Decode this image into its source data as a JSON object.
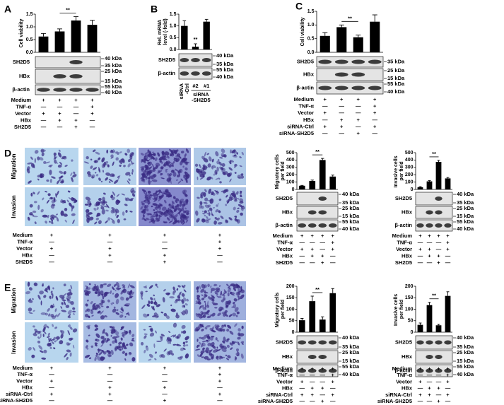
{
  "panel_letters": [
    "A",
    "B",
    "C",
    "D",
    "E"
  ],
  "chart_data": [
    {
      "type": "bar",
      "ylabel": "Cell viability",
      "values": [
        0.62,
        0.82,
        1.25,
        1.08
      ],
      "errors": [
        0.12,
        0.1,
        0.15,
        0.18
      ],
      "color": "#000000",
      "ylim": [
        0,
        1.5
      ],
      "yticks": [
        {
          "value": 0,
          "label": "0.0"
        },
        {
          "value": 0.5,
          "label": "0.5"
        },
        {
          "value": 1,
          "label": "1.0"
        },
        {
          "value": 1.5,
          "label": "1.5"
        }
      ],
      "significance": {
        "label": "**",
        "between": [
          1,
          2
        ]
      }
    },
    {
      "type": "bar",
      "ylabel": "Rel. mRNA level (-fold)",
      "categories": [
        "siRNA-Ctrl",
        "#2",
        "#1"
      ],
      "group_label": "siRNA-SH2D5",
      "values": [
        1.0,
        0.12,
        1.18
      ],
      "errors": [
        0.22,
        0.12,
        0.1
      ],
      "color": "#000000",
      "ylim": [
        0,
        1.5
      ],
      "yticks": [
        {
          "value": 0,
          "label": "0.0"
        },
        {
          "value": 0.5,
          "label": "0.5"
        },
        {
          "value": 1,
          "label": "1.0"
        },
        {
          "value": 1.5,
          "label": "1.5"
        }
      ],
      "significance": {
        "label": "**",
        "over": 1
      }
    },
    {
      "type": "bar",
      "ylabel": "Cell viability",
      "values": [
        0.6,
        0.92,
        0.55,
        1.12
      ],
      "errors": [
        0.12,
        0.08,
        0.08,
        0.25
      ],
      "color": "#000000",
      "ylim": [
        0,
        1.5
      ],
      "yticks": [
        {
          "value": 0,
          "label": "0.0"
        },
        {
          "value": 0.5,
          "label": "0.5"
        },
        {
          "value": 1,
          "label": "1.0"
        },
        {
          "value": 1.5,
          "label": "1.5"
        }
      ],
      "significance": {
        "label": "**",
        "between": [
          1,
          2
        ]
      }
    },
    {
      "type": "bar",
      "ylabel": "Migratory cells per field",
      "values": [
        50,
        115,
        400,
        175
      ],
      "errors": [
        5,
        12,
        22,
        20
      ],
      "color": "#000000",
      "ylim": [
        0,
        500
      ],
      "yticks": [
        0,
        100,
        200,
        300,
        400,
        500
      ],
      "significance": {
        "label": "**",
        "between": [
          1,
          2
        ]
      }
    },
    {
      "type": "bar",
      "ylabel": "Invasive cells per field",
      "values": [
        30,
        110,
        375,
        150
      ],
      "errors": [
        8,
        10,
        20,
        12
      ],
      "color": "#000000",
      "ylim": [
        0,
        500
      ],
      "yticks": [
        0,
        100,
        200,
        300,
        400,
        500
      ],
      "significance": {
        "label": "**",
        "between": [
          1,
          2
        ]
      }
    },
    {
      "type": "bar",
      "ylabel": "Migratory cells per field",
      "values": [
        52,
        135,
        55,
        170
      ],
      "errors": [
        8,
        22,
        12,
        20
      ],
      "color": "#000000",
      "ylim": [
        0,
        200
      ],
      "yticks": [
        0,
        50,
        100,
        150,
        200
      ],
      "significance": {
        "label": "**",
        "between": [
          1,
          2
        ]
      }
    },
    {
      "type": "bar",
      "ylabel": "Invasive cells per field",
      "values": [
        32,
        118,
        30,
        158
      ],
      "errors": [
        8,
        12,
        4,
        18
      ],
      "color": "#000000",
      "ylim": [
        0,
        200
      ],
      "yticks": [
        0,
        50,
        100,
        150,
        200
      ],
      "significance": {
        "label": "**",
        "between": [
          1,
          2
        ]
      }
    }
  ],
  "blots": [
    {
      "rows": [
        {
          "label": "SH2D5",
          "markers": [
            "40 kDa",
            "35 kDa"
          ]
        },
        {
          "label": "HBx",
          "markers": [
            "25 kDa",
            "15 kDa"
          ]
        },
        {
          "label": "β-actin",
          "markers": [
            "55 kDa",
            "40 kDa"
          ]
        }
      ]
    },
    {
      "rows": [
        {
          "label": "SH2D5",
          "markers": [
            "40 kDa",
            "35 kDa"
          ]
        },
        {
          "label": "β-actin",
          "markers": [
            "55 kDa",
            "40 kDa"
          ]
        }
      ]
    },
    {
      "rows": [
        {
          "label": "SH2D5",
          "markers": [
            "35 kDa"
          ]
        },
        {
          "label": "HBx",
          "markers": [
            "25 kDa",
            "15 kDa"
          ]
        },
        {
          "label": "β-actin",
          "markers": [
            "55 kDa",
            "40 kDa"
          ]
        }
      ]
    },
    {
      "rows": [
        {
          "label": "SH2D5",
          "markers": [
            "40 kDa",
            "35 kDa"
          ]
        },
        {
          "label": "HBx",
          "markers": [
            "25 kDa",
            "15 kDa"
          ]
        },
        {
          "label": "β-actin",
          "markers": [
            "55 kDa",
            "40 kDa"
          ]
        }
      ]
    },
    {
      "rows": [
        {
          "label": "SH2D5",
          "markers": [
            "40 kDa",
            "35 kDa"
          ]
        },
        {
          "label": "HBx",
          "markers": [
            "25 kDa",
            "15 kDa"
          ]
        },
        {
          "label": "β-actin",
          "markers": [
            "55 kDa",
            "40 kDa"
          ]
        }
      ]
    },
    {
      "rows": [
        {
          "label": "SH2D5",
          "markers": [
            "40 kDa",
            "35 kDa"
          ]
        },
        {
          "label": "HBx",
          "markers": [
            "25 kDa",
            "15 kDa"
          ]
        },
        {
          "label": "β-actin",
          "markers": [
            "55 kDa",
            "40 kDa"
          ]
        }
      ]
    },
    {
      "rows": [
        {
          "label": "SH2D5",
          "markers": [
            "40 kDa",
            "35 kDa"
          ]
        },
        {
          "label": "HBx",
          "markers": [
            "25 kDa",
            "15 kDa"
          ]
        },
        {
          "label": "β-actin",
          "markers": [
            "55 kDa",
            "40 kDa"
          ]
        }
      ]
    }
  ],
  "conditions": [
    {
      "rows": [
        {
          "label": "Medium",
          "signs": [
            "+",
            "+",
            "+",
            "+"
          ]
        },
        {
          "label": "TNF-α",
          "signs": [
            "—",
            "—",
            "—",
            "+"
          ]
        },
        {
          "label": "Vector",
          "signs": [
            "+",
            "+",
            "—",
            "+"
          ]
        },
        {
          "label": "HBx",
          "signs": [
            "—",
            "+",
            "+",
            "—"
          ]
        },
        {
          "label": "SH2D5",
          "signs": [
            "—",
            "—",
            "+",
            "—"
          ]
        }
      ]
    },
    {
      "rows": [
        {
          "label": "Medium",
          "signs": [
            "+",
            "+",
            "+",
            "+"
          ]
        },
        {
          "label": "TNF-α",
          "signs": [
            "—",
            "—",
            "—",
            "+"
          ]
        },
        {
          "label": "Vector",
          "signs": [
            "+",
            "—",
            "—",
            "+"
          ]
        },
        {
          "label": "HBx",
          "signs": [
            "—",
            "+",
            "+",
            "—"
          ]
        },
        {
          "label": "siRNA-Ctrl",
          "signs": [
            "+",
            "+",
            "—",
            "+"
          ]
        },
        {
          "label": "siRNA-SH2D5",
          "signs": [
            "—",
            "—",
            "+",
            "—"
          ]
        }
      ]
    },
    {
      "rows": [
        {
          "label": "Medium",
          "signs": [
            "+",
            "+",
            "+",
            "+"
          ]
        },
        {
          "label": "TNF-α",
          "signs": [
            "—",
            "—",
            "—",
            "+"
          ]
        },
        {
          "label": "Vector",
          "signs": [
            "+",
            "+",
            "—",
            "+"
          ]
        },
        {
          "label": "HBx",
          "signs": [
            "—",
            "+",
            "+",
            "—"
          ]
        },
        {
          "label": "SH2D5",
          "signs": [
            "—",
            "—",
            "+",
            "—"
          ]
        }
      ]
    },
    {
      "rows": [
        {
          "label": "Medium",
          "signs": [
            "+",
            "+",
            "+",
            "+"
          ]
        },
        {
          "label": "TNF-α",
          "signs": [
            "—",
            "—",
            "—",
            "+"
          ]
        },
        {
          "label": "Vector",
          "signs": [
            "+",
            "+",
            "—",
            "+"
          ]
        },
        {
          "label": "HBx",
          "signs": [
            "—",
            "+",
            "+",
            "—"
          ]
        },
        {
          "label": "SH2D5",
          "signs": [
            "—",
            "—",
            "+",
            "—"
          ]
        }
      ]
    },
    {
      "rows": [
        {
          "label": "Medium",
          "signs": [
            "+",
            "+",
            "+",
            "+"
          ]
        },
        {
          "label": "TNF-α",
          "signs": [
            "—",
            "—",
            "—",
            "+"
          ]
        },
        {
          "label": "Vector",
          "signs": [
            "+",
            "+",
            "—",
            "+"
          ]
        },
        {
          "label": "HBx",
          "signs": [
            "—",
            "+",
            "+",
            "—"
          ]
        },
        {
          "label": "SH2D5",
          "signs": [
            "—",
            "—",
            "+",
            "—"
          ]
        }
      ]
    },
    {
      "rows": [
        {
          "label": "Medium",
          "signs": [
            "+",
            "+",
            "+",
            "+"
          ]
        },
        {
          "label": "TNF-α",
          "signs": [
            "—",
            "—",
            "—",
            "+"
          ]
        },
        {
          "label": "Vector",
          "signs": [
            "+",
            "—",
            "—",
            "+"
          ]
        },
        {
          "label": "HBx",
          "signs": [
            "—",
            "+",
            "+",
            "—"
          ]
        },
        {
          "label": "siRNA-Ctrl",
          "signs": [
            "+",
            "+",
            "—",
            "+"
          ]
        },
        {
          "label": "siRNA-SH2D5",
          "signs": [
            "—",
            "—",
            "+",
            "—"
          ]
        }
      ]
    },
    {
      "rows": [
        {
          "label": "Medium",
          "signs": [
            "+",
            "+",
            "+",
            "+"
          ]
        },
        {
          "label": "TNF-α",
          "signs": [
            "—",
            "—",
            "—",
            "+"
          ]
        },
        {
          "label": "Vector",
          "signs": [
            "+",
            "—",
            "—",
            "+"
          ]
        },
        {
          "label": "HBx",
          "signs": [
            "—",
            "+",
            "+",
            "—"
          ]
        },
        {
          "label": "siRNA-Ctrl",
          "signs": [
            "+",
            "+",
            "—",
            "+"
          ]
        },
        {
          "label": "siRNA-SH2D5",
          "signs": [
            "—",
            "—",
            "+",
            "—"
          ]
        }
      ]
    },
    {
      "rows": [
        {
          "label": "Medium",
          "signs": [
            "+",
            "+",
            "+",
            "+"
          ]
        },
        {
          "label": "TNF-α",
          "signs": [
            "—",
            "—",
            "—",
            "+"
          ]
        },
        {
          "label": "Vector",
          "signs": [
            "+",
            "—",
            "—",
            "+"
          ]
        },
        {
          "label": "HBx",
          "signs": [
            "—",
            "+",
            "+",
            "—"
          ]
        },
        {
          "label": "siRNA-Ctrl",
          "signs": [
            "+",
            "+",
            "—",
            "+"
          ]
        },
        {
          "label": "siRNA-SH2D5",
          "signs": [
            "—",
            "—",
            "+",
            "—"
          ]
        }
      ]
    }
  ],
  "micrographs": [
    {
      "rows": [
        "Migration",
        "Invasion"
      ]
    },
    {
      "rows": [
        "Migration",
        "Invasion"
      ]
    }
  ]
}
